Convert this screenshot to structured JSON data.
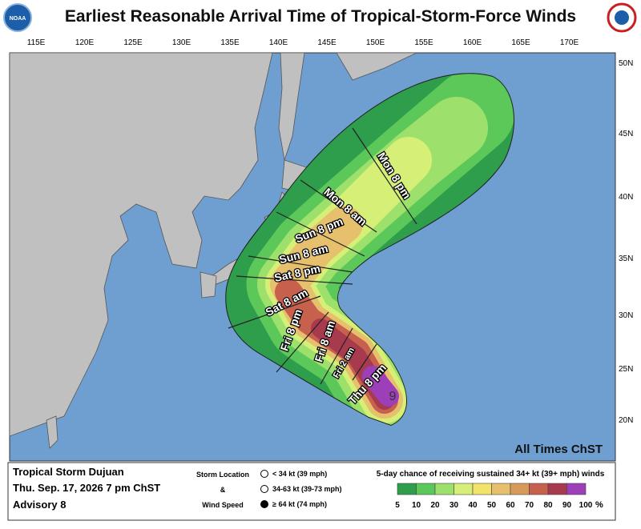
{
  "header": {
    "title": "Earliest Reasonable Arrival Time of Tropical-Storm-Force Winds",
    "left_logo": "NOAA"
  },
  "map": {
    "longitude_labels": [
      "115E",
      "120E",
      "125E",
      "130E",
      "135E",
      "140E",
      "145E",
      "150E",
      "155E",
      "160E",
      "165E",
      "170E"
    ],
    "latitude_labels": [
      "50N",
      "45N",
      "40N",
      "35N",
      "30N",
      "25N",
      "20N"
    ],
    "time_labels": [
      "Mon 8 pm",
      "Mon 8 am",
      "Sun 8 pm",
      "Sun 8 am",
      "Sat 8 pm",
      "Sat 8 am",
      "Fri 8 pm",
      "Fri 8 am",
      "Fri 2 am",
      "Thu 8 pm"
    ],
    "storm_symbol": "9",
    "times_note": "All Times ChST"
  },
  "footer": {
    "storm_name": "Tropical Storm Dujuan",
    "issued": "Thu. Sep. 17, 2026  7 pm ChST",
    "advisory": "Advisory 8",
    "legend_title_lines": [
      "Storm Location",
      "&",
      "Wind Speed"
    ],
    "legend_items": [
      "< 34 kt (39 mph)",
      "34-63 kt (39-73 mph)",
      "≥ 64 kt (74 mph)"
    ],
    "chance_title": "5-day chance of receiving sustained 34+ kt (39+ mph) winds",
    "colorbar": {
      "values": [
        5,
        10,
        20,
        30,
        40,
        50,
        60,
        70,
        80,
        90,
        100
      ],
      "unit": "%",
      "colors": [
        "#2f9e4c",
        "#5cc85a",
        "#9ee06c",
        "#d6ef76",
        "#f2e36a",
        "#e6c06c",
        "#d89a58",
        "#c8604e",
        "#a83a4e",
        "#9c3fb8"
      ]
    }
  }
}
